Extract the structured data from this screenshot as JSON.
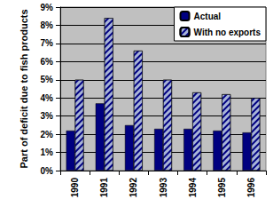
{
  "chart_data": {
    "type": "bar",
    "y_label": "Part of deficit due to fish products",
    "categories": [
      "1990",
      "1991",
      "1992",
      "1993",
      "1994",
      "1995",
      "1996"
    ],
    "series": [
      {
        "name": "Actual",
        "color": "#000080",
        "values": [
          2.2,
          3.7,
          2.5,
          2.3,
          2.3,
          2.2,
          2.1
        ]
      },
      {
        "name": "With no exports",
        "color": "#a8b4d8",
        "values": [
          5.0,
          8.4,
          6.6,
          5.0,
          4.3,
          4.2,
          4.0
        ]
      }
    ],
    "ylim": [
      0,
      9
    ],
    "yticks": [
      {
        "value": 0,
        "label": "0%"
      },
      {
        "value": 1,
        "label": "1%"
      },
      {
        "value": 2,
        "label": "2%"
      },
      {
        "value": 3,
        "label": "3%"
      },
      {
        "value": 4,
        "label": "4%"
      },
      {
        "value": 5,
        "label": "5%"
      },
      {
        "value": 6,
        "label": "6%"
      },
      {
        "value": 7,
        "label": "7%"
      },
      {
        "value": 8,
        "label": "8%"
      },
      {
        "value": 9,
        "label": "9%"
      }
    ],
    "grid": true,
    "legend": "top-right"
  }
}
